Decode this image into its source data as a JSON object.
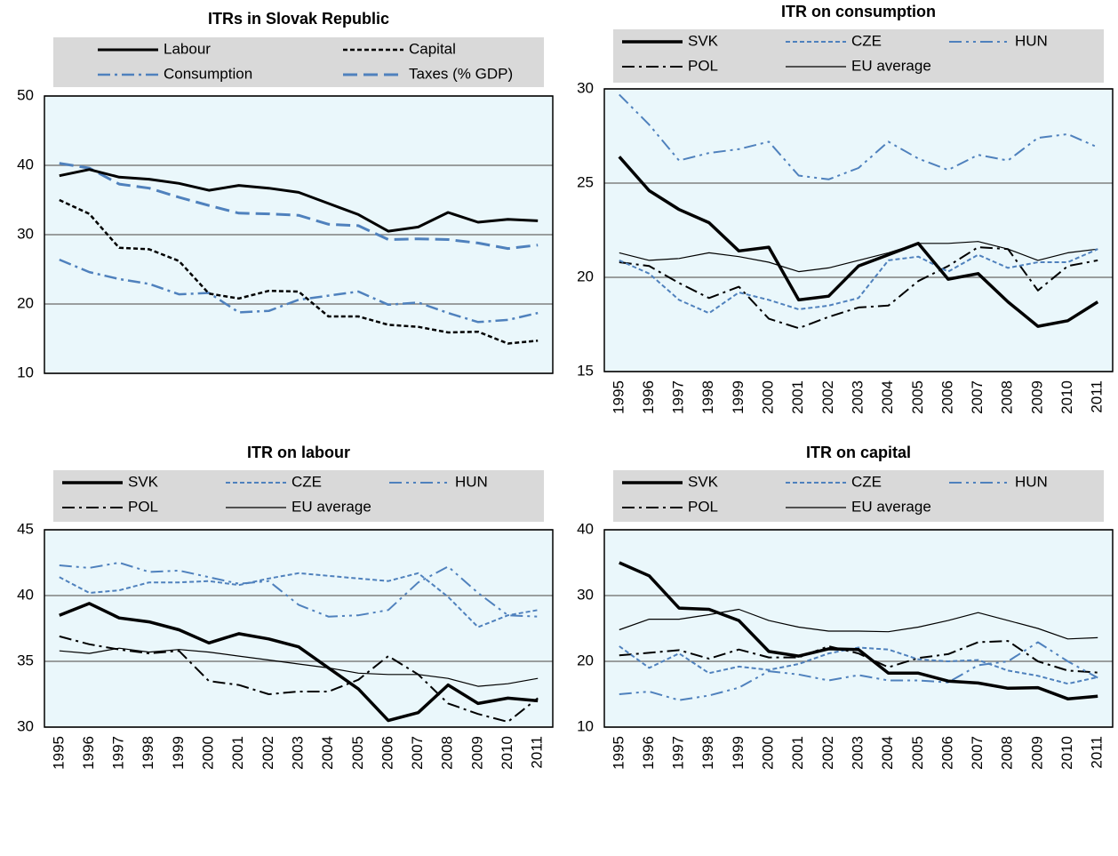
{
  "chart_data": [
    {
      "type": "line",
      "title": "ITRs in Slovak Republic",
      "categories": [
        null,
        null,
        null,
        null,
        null,
        null,
        null,
        null,
        null,
        null,
        null,
        null,
        null,
        null,
        null,
        null,
        null
      ],
      "ylim": [
        10,
        50
      ],
      "yticks": [
        10,
        20,
        30,
        40,
        50
      ],
      "grid": true,
      "series": [
        {
          "name": "Labour",
          "color": "#000000",
          "dash": "solid",
          "width": 3,
          "values": [
            38.5,
            39.4,
            38.3,
            38.0,
            37.4,
            36.4,
            37.1,
            36.7,
            36.1,
            34.5,
            32.9,
            30.5,
            31.1,
            33.2,
            31.8,
            32.2,
            32.0
          ]
        },
        {
          "name": "Capital",
          "color": "#000000",
          "dash": "dot",
          "width": 2.5,
          "values": [
            35.0,
            33.0,
            28.1,
            27.9,
            26.2,
            21.5,
            20.8,
            21.9,
            21.8,
            18.2,
            18.2,
            17.0,
            16.7,
            15.9,
            16.0,
            14.3,
            14.7
          ]
        },
        {
          "name": "Consumption",
          "color": "#4f81bd",
          "dash": "dashdot",
          "width": 2.5,
          "values": [
            26.4,
            24.6,
            23.6,
            22.9,
            21.4,
            21.6,
            18.8,
            19.0,
            20.6,
            21.2,
            21.8,
            19.9,
            20.2,
            18.7,
            17.4,
            17.7,
            18.7
          ]
        },
        {
          "name": "Taxes (% GDP)",
          "color": "#4f81bd",
          "dash": "dash",
          "width": 3,
          "values": [
            40.3,
            39.6,
            37.3,
            36.7,
            35.4,
            34.2,
            33.1,
            33.0,
            32.8,
            31.5,
            31.3,
            29.3,
            29.4,
            29.3,
            28.8,
            28.0,
            28.5
          ]
        }
      ]
    },
    {
      "type": "line",
      "title": "ITR on consumption",
      "categories": [
        "1995",
        "1996",
        "1997",
        "1998",
        "1999",
        "2000",
        "2001",
        "2002",
        "2003",
        "2004",
        "2005",
        "2006",
        "2007",
        "2008",
        "2009",
        "2010",
        "2011"
      ],
      "ylim": [
        15,
        30
      ],
      "yticks": [
        15,
        20,
        25,
        30
      ],
      "grid": true,
      "series": [
        {
          "name": "SVK",
          "color": "#000000",
          "dash": "solid",
          "width": 3.5,
          "values": [
            26.4,
            24.6,
            23.6,
            22.9,
            21.4,
            21.6,
            18.8,
            19.0,
            20.6,
            21.2,
            21.8,
            19.9,
            20.2,
            18.7,
            17.4,
            17.7,
            18.7
          ]
        },
        {
          "name": "CZE",
          "color": "#4f81bd",
          "dash": "dot",
          "width": 2,
          "values": [
            20.9,
            20.2,
            18.8,
            18.1,
            19.2,
            18.8,
            18.3,
            18.5,
            18.9,
            20.9,
            21.1,
            20.3,
            21.2,
            20.5,
            20.8,
            20.8,
            21.5
          ]
        },
        {
          "name": "HUN",
          "color": "#4f81bd",
          "dash": "dashdotdot",
          "width": 2,
          "values": [
            29.7,
            28.1,
            26.2,
            26.6,
            26.8,
            27.2,
            25.4,
            25.2,
            25.8,
            27.2,
            26.3,
            25.7,
            26.5,
            26.2,
            27.4,
            27.6,
            26.9
          ]
        },
        {
          "name": "POL",
          "color": "#000000",
          "dash": "dashdot",
          "width": 2,
          "values": [
            20.8,
            20.6,
            19.7,
            18.9,
            19.5,
            17.8,
            17.3,
            17.9,
            18.4,
            18.5,
            19.8,
            20.6,
            21.6,
            21.5,
            19.3,
            20.6,
            20.9
          ]
        },
        {
          "name": "EU average",
          "color": "#000000",
          "dash": "solid",
          "width": 1.2,
          "values": [
            21.3,
            20.9,
            21.0,
            21.3,
            21.1,
            20.8,
            20.3,
            20.5,
            20.9,
            21.3,
            21.8,
            21.8,
            21.9,
            21.5,
            20.9,
            21.3,
            21.5
          ]
        }
      ]
    },
    {
      "type": "line",
      "title": "ITR on labour",
      "categories": [
        "1995",
        "1996",
        "1997",
        "1998",
        "1999",
        "2000",
        "2001",
        "2002",
        "2003",
        "2004",
        "2005",
        "2006",
        "2007",
        "2008",
        "2009",
        "2010",
        "2011"
      ],
      "ylim": [
        30,
        45
      ],
      "yticks": [
        30,
        35,
        40,
        45
      ],
      "grid": true,
      "series": [
        {
          "name": "SVK",
          "color": "#000000",
          "dash": "solid",
          "width": 3.5,
          "values": [
            38.5,
            39.4,
            38.3,
            38.0,
            37.4,
            36.4,
            37.1,
            36.7,
            36.1,
            34.5,
            32.9,
            30.5,
            31.1,
            33.2,
            31.8,
            32.2,
            32.0
          ]
        },
        {
          "name": "CZE",
          "color": "#4f81bd",
          "dash": "dot",
          "width": 2,
          "values": [
            41.4,
            40.2,
            40.4,
            41.0,
            41.0,
            41.1,
            40.8,
            41.3,
            41.7,
            41.5,
            41.3,
            41.1,
            41.7,
            39.9,
            37.6,
            38.5,
            38.9
          ]
        },
        {
          "name": "HUN",
          "color": "#4f81bd",
          "dash": "dashdotdot",
          "width": 2,
          "values": [
            42.3,
            42.1,
            42.5,
            41.8,
            41.9,
            41.4,
            40.9,
            41.1,
            39.3,
            38.4,
            38.5,
            38.9,
            41.0,
            42.2,
            40.2,
            38.5,
            38.4
          ]
        },
        {
          "name": "POL",
          "color": "#000000",
          "dash": "dashdot",
          "width": 2,
          "values": [
            36.9,
            36.3,
            35.9,
            35.6,
            35.8,
            33.5,
            33.2,
            32.5,
            32.7,
            32.7,
            33.6,
            35.4,
            34.0,
            31.8,
            31.0,
            30.4,
            32.2
          ]
        },
        {
          "name": "EU average",
          "color": "#000000",
          "dash": "solid",
          "width": 1.2,
          "values": [
            35.8,
            35.6,
            36.0,
            35.7,
            35.9,
            35.7,
            35.4,
            35.1,
            34.8,
            34.5,
            34.1,
            34.0,
            34.0,
            33.7,
            33.1,
            33.3,
            33.7
          ]
        }
      ]
    },
    {
      "type": "line",
      "title": "ITR on capital",
      "categories": [
        "1995",
        "1996",
        "1997",
        "1998",
        "1999",
        "2000",
        "2001",
        "2002",
        "2003",
        "2004",
        "2005",
        "2006",
        "2007",
        "2008",
        "2009",
        "2010",
        "2011"
      ],
      "ylim": [
        10,
        40
      ],
      "yticks": [
        10,
        20,
        30,
        40
      ],
      "grid": true,
      "series": [
        {
          "name": "SVK",
          "color": "#000000",
          "dash": "solid",
          "width": 3.5,
          "values": [
            35.0,
            33.0,
            28.1,
            27.9,
            26.2,
            21.5,
            20.8,
            21.9,
            21.8,
            18.2,
            18.2,
            17.0,
            16.7,
            15.9,
            16.0,
            14.3,
            14.7
          ]
        },
        {
          "name": "CZE",
          "color": "#4f81bd",
          "dash": "dot",
          "width": 2,
          "values": [
            22.3,
            19.0,
            21.2,
            18.2,
            19.2,
            18.7,
            19.6,
            21.2,
            22.1,
            21.8,
            20.3,
            20.0,
            20.2,
            18.6,
            17.8,
            16.6,
            17.6
          ]
        },
        {
          "name": "HUN",
          "color": "#4f81bd",
          "dash": "dashdotdot",
          "width": 2,
          "values": [
            15.0,
            15.4,
            14.1,
            14.8,
            16.0,
            18.5,
            18.0,
            17.1,
            17.9,
            17.1,
            17.1,
            16.8,
            19.4,
            20.0,
            22.9,
            20.0,
            17.5
          ]
        },
        {
          "name": "POL",
          "color": "#000000",
          "dash": "dashdot",
          "width": 2,
          "values": [
            20.9,
            21.3,
            21.7,
            20.4,
            21.8,
            20.6,
            20.6,
            22.3,
            21.2,
            19.1,
            20.5,
            21.1,
            22.9,
            23.1,
            20.0,
            18.6,
            18.3
          ]
        },
        {
          "name": "EU average",
          "color": "#000000",
          "dash": "solid",
          "width": 1.2,
          "values": [
            24.8,
            26.4,
            26.4,
            27.1,
            27.9,
            26.2,
            25.2,
            24.6,
            24.6,
            24.5,
            25.2,
            26.2,
            27.4,
            26.2,
            25.0,
            23.4,
            23.6
          ]
        }
      ]
    }
  ]
}
